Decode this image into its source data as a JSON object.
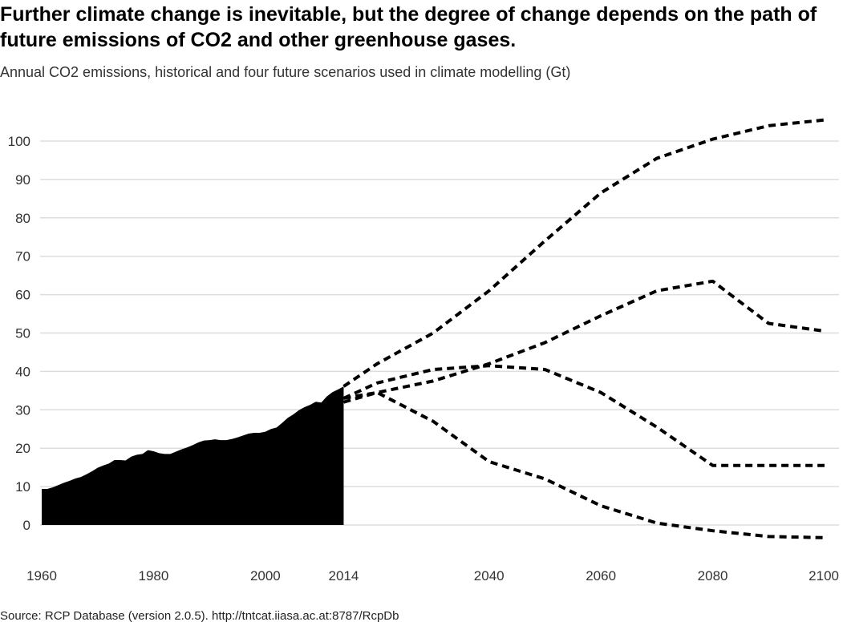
{
  "title": "Further climate change is inevitable, but the degree of change depends on the path of future emissions of CO2 and other greenhouse gases.",
  "subtitle": "Annual CO2 emissions, historical and four future scenarios used in climate modelling (Gt)",
  "source": "Source: RCP Database (version 2.0.5). http://tntcat.iiasa.ac.at:8787/RcpDb",
  "colors": {
    "historical": "#000000",
    "scenario": "#000000",
    "grid": "#dddddd",
    "tick_text": "#333333"
  },
  "chart_data": {
    "type": "area",
    "title": "Further climate change is inevitable, but the degree of change depends on the path of future emissions of CO2 and other greenhouse gases.",
    "subtitle": "Annual CO2 emissions, historical and four future scenarios used in climate modelling (Gt)",
    "xlabel": "",
    "ylabel": "",
    "xlim": [
      1960,
      2100
    ],
    "ylim": [
      -5,
      107
    ],
    "x_ticks": [
      1960,
      1980,
      2000,
      2014,
      2040,
      2060,
      2080,
      2100
    ],
    "y_ticks": [
      0,
      10,
      20,
      30,
      40,
      50,
      60,
      70,
      80,
      90,
      100
    ],
    "grid": true,
    "legend": "none",
    "historical": {
      "style": "filled-area",
      "x": [
        1960,
        1961,
        1962,
        1963,
        1964,
        1965,
        1966,
        1967,
        1968,
        1969,
        1970,
        1971,
        1972,
        1973,
        1974,
        1975,
        1976,
        1977,
        1978,
        1979,
        1980,
        1981,
        1982,
        1983,
        1984,
        1985,
        1986,
        1987,
        1988,
        1989,
        1990,
        1991,
        1992,
        1993,
        1994,
        1995,
        1996,
        1997,
        1998,
        1999,
        2000,
        2001,
        2002,
        2003,
        2004,
        2005,
        2006,
        2007,
        2008,
        2009,
        2010,
        2011,
        2012,
        2013,
        2014
      ],
      "y": [
        9.4,
        9.4,
        9.8,
        10.4,
        11.0,
        11.5,
        12.1,
        12.5,
        13.2,
        14.0,
        14.9,
        15.5,
        16.0,
        16.9,
        16.9,
        16.8,
        17.8,
        18.3,
        18.5,
        19.5,
        19.2,
        18.7,
        18.5,
        18.5,
        19.1,
        19.7,
        20.2,
        20.8,
        21.5,
        22.0,
        22.1,
        22.3,
        22.1,
        22.1,
        22.4,
        22.8,
        23.3,
        23.8,
        24.0,
        24.0,
        24.3,
        25.0,
        25.4,
        26.6,
        27.9,
        28.8,
        29.9,
        30.7,
        31.3,
        32.1,
        31.9,
        33.5,
        34.6,
        35.3,
        36.1
      ]
    },
    "series": [
      {
        "style": "dashed",
        "x": [
          2014,
          2020,
          2030,
          2040,
          2050,
          2060,
          2070,
          2080,
          2090,
          2100
        ],
        "y": [
          36.1,
          42,
          50,
          61,
          74,
          86.5,
          95.5,
          100.5,
          104,
          105.5
        ]
      },
      {
        "style": "dashed",
        "x": [
          2014,
          2020,
          2030,
          2040,
          2050,
          2060,
          2070,
          2080,
          2090,
          2100
        ],
        "y": [
          33,
          34.5,
          37.5,
          42,
          47.5,
          54.5,
          61,
          63.5,
          52.5,
          50.5
        ]
      },
      {
        "style": "dashed",
        "x": [
          2014,
          2020,
          2030,
          2040,
          2050,
          2060,
          2070,
          2080,
          2090,
          2100
        ],
        "y": [
          33,
          37,
          40.5,
          41.5,
          40.5,
          34.5,
          25.5,
          15.5,
          15.5,
          15.5
        ]
      },
      {
        "style": "dashed",
        "x": [
          2014,
          2020,
          2030,
          2040,
          2050,
          2060,
          2070,
          2080,
          2090,
          2100
        ],
        "y": [
          32,
          34.5,
          27,
          16.5,
          12,
          5,
          0.5,
          -1.5,
          -3,
          -3.3
        ]
      }
    ]
  }
}
